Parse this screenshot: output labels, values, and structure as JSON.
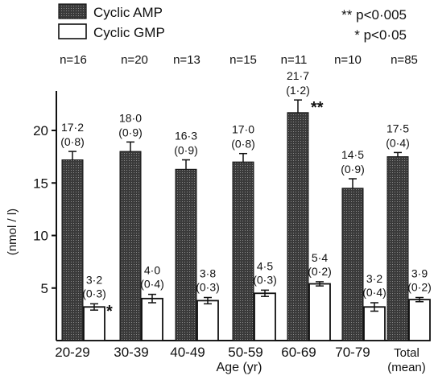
{
  "chart_data": {
    "type": "bar",
    "categories": [
      "20-29",
      "30-39",
      "40-49",
      "50-59",
      "60-69",
      "70-79",
      "Total"
    ],
    "category_sublabels": [
      "",
      "",
      "",
      "",
      "",
      "",
      "(mean)"
    ],
    "n_labels": [
      "n=16",
      "n=20",
      "n=13",
      "n=15",
      "n=11",
      "n=10",
      "n=85"
    ],
    "series": [
      {
        "name": "Cyclic AMP",
        "color": "#3a3a3a",
        "values": [
          17.2,
          18.0,
          16.3,
          17.0,
          21.7,
          14.5,
          17.5
        ],
        "errors": [
          0.8,
          0.9,
          0.9,
          0.8,
          1.2,
          0.9,
          0.4
        ],
        "value_labels": [
          "17·2",
          "18·0",
          "16·3",
          "17·0",
          "21·7",
          "14·5",
          "17·5"
        ],
        "error_labels": [
          "(0·8)",
          "(0·9)",
          "(0·9)",
          "(0·8)",
          "(1·2)",
          "(0·9)",
          "(0·4)"
        ],
        "markers": [
          "",
          "",
          "",
          "",
          "**",
          "",
          ""
        ]
      },
      {
        "name": "Cyclic GMP",
        "color": "#ffffff",
        "values": [
          3.2,
          4.0,
          3.8,
          4.5,
          5.4,
          3.2,
          3.9
        ],
        "errors": [
          0.3,
          0.4,
          0.3,
          0.3,
          0.2,
          0.4,
          0.2
        ],
        "value_labels": [
          "3·2",
          "4·0",
          "3·8",
          "4·5",
          "5·4",
          "3·2",
          "3·9"
        ],
        "error_labels": [
          "(0·3)",
          "(0·4)",
          "(0·3)",
          "(0·3)",
          "(0·2)",
          "(0·4)",
          "(0·2)"
        ],
        "markers": [
          "*",
          "",
          "",
          "",
          "",
          "",
          ""
        ]
      }
    ],
    "significance": [
      "** p<0·005",
      "* p<0·05"
    ],
    "xlabel": "Age (yr)",
    "ylabel": "(nmol / l)",
    "yticks": [
      5,
      10,
      15,
      20
    ],
    "ylim": [
      0,
      24
    ],
    "legend_position": "top-left",
    "grid": false
  }
}
